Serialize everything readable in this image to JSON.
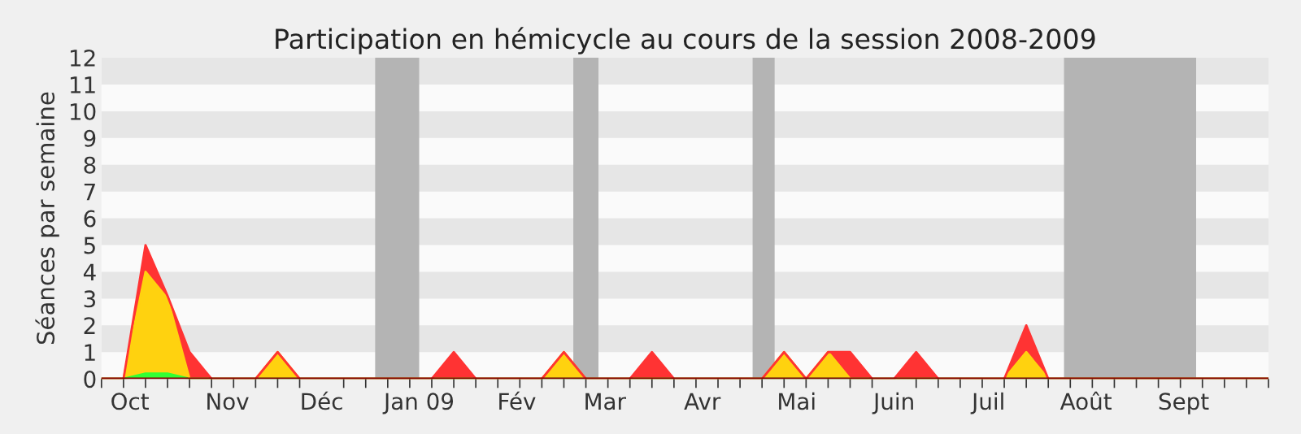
{
  "chart_data": {
    "type": "area",
    "stacked": true,
    "title": "Participation en hémicycle au cours de la session 2008-2009",
    "ylabel": "Séances par semaine",
    "x": [
      "2008-09-22",
      "2008-09-29",
      "2008-10-06",
      "2008-10-13",
      "2008-10-20",
      "2008-10-27",
      "2008-11-03",
      "2008-11-10",
      "2008-11-17",
      "2008-11-24",
      "2008-12-01",
      "2008-12-08",
      "2008-12-15",
      "2008-12-22",
      "2008-12-29",
      "2009-01-05",
      "2009-01-12",
      "2009-01-19",
      "2009-01-26",
      "2009-02-02",
      "2009-02-09",
      "2009-02-16",
      "2009-02-23",
      "2009-03-02",
      "2009-03-09",
      "2009-03-16",
      "2009-03-23",
      "2009-03-30",
      "2009-04-06",
      "2009-04-13",
      "2009-04-20",
      "2009-04-27",
      "2009-05-04",
      "2009-05-11",
      "2009-05-18",
      "2009-05-25",
      "2009-06-01",
      "2009-06-08",
      "2009-06-15",
      "2009-06-22",
      "2009-06-29",
      "2009-07-06",
      "2009-07-13",
      "2009-07-20",
      "2009-07-27",
      "2009-08-03",
      "2009-08-10",
      "2009-08-17",
      "2009-08-24",
      "2009-08-31",
      "2009-09-07",
      "2009-09-14",
      "2009-09-21",
      "2009-09-28"
    ],
    "series": [
      {
        "color": "#33ff33",
        "values": [
          0,
          0,
          0.2,
          0.2,
          0,
          0,
          0,
          0,
          0,
          0,
          0,
          0,
          0,
          0,
          0,
          0,
          0,
          0,
          0,
          0,
          0,
          0,
          0,
          0,
          0,
          0,
          0,
          0,
          0,
          0,
          0,
          0,
          0,
          0,
          0,
          0,
          0,
          0,
          0,
          0,
          0,
          0,
          0,
          0,
          0,
          0,
          0,
          0,
          0,
          0,
          0,
          0,
          0,
          0
        ]
      },
      {
        "color": "#ffd20f",
        "values": [
          0,
          0,
          3.8,
          2.8,
          0,
          0,
          0,
          0,
          1,
          0,
          0,
          0,
          0,
          0,
          0,
          0,
          0,
          0,
          0,
          0,
          0,
          1,
          0,
          0,
          0,
          0,
          0,
          0,
          0,
          0,
          0,
          1,
          0,
          1,
          0,
          0,
          0,
          0,
          0,
          0,
          0,
          0,
          1,
          0,
          0,
          0,
          0,
          0,
          0,
          0,
          0,
          0,
          0,
          0
        ]
      },
      {
        "color": "#ff3333",
        "values": [
          0,
          0,
          1,
          0.1,
          1,
          0,
          0,
          0,
          0,
          0,
          0,
          0,
          0,
          0,
          0,
          0,
          1,
          0,
          0,
          0,
          0,
          0,
          0,
          0,
          0,
          1,
          0,
          0,
          0,
          0,
          0,
          0,
          0,
          0,
          1,
          0,
          0,
          1,
          0,
          0,
          0,
          0,
          1,
          0,
          0,
          0,
          0,
          0,
          0,
          0,
          0,
          0,
          0,
          0
        ]
      }
    ],
    "xlim": [
      "2008-09-22",
      "2009-09-28"
    ],
    "xticks": [
      {
        "value": "2008-10-01",
        "label": "Oct"
      },
      {
        "value": "2008-11-01",
        "label": "Nov"
      },
      {
        "value": "2008-12-01",
        "label": "Déc"
      },
      {
        "value": "2009-01-01",
        "label": "Jan 09"
      },
      {
        "value": "2009-02-01",
        "label": "Fév"
      },
      {
        "value": "2009-03-01",
        "label": "Mar"
      },
      {
        "value": "2009-04-01",
        "label": "Avr"
      },
      {
        "value": "2009-05-01",
        "label": "Mai"
      },
      {
        "value": "2009-06-01",
        "label": "Juin"
      },
      {
        "value": "2009-07-01",
        "label": "Juil"
      },
      {
        "value": "2009-08-01",
        "label": "Août"
      },
      {
        "value": "2009-09-01",
        "label": "Sept"
      }
    ],
    "ylim": [
      0,
      12
    ],
    "yticks": [
      0,
      1,
      2,
      3,
      4,
      5,
      6,
      7,
      8,
      9,
      10,
      11,
      12
    ],
    "bands": [
      {
        "axis": "x",
        "from": "2008-12-18",
        "to": "2009-01-01",
        "color": "#b4b4b4"
      },
      {
        "axis": "x",
        "from": "2009-02-19",
        "to": "2009-02-27",
        "color": "#b4b4b4"
      },
      {
        "axis": "x",
        "from": "2009-04-17",
        "to": "2009-04-24",
        "color": "#b4b4b4"
      },
      {
        "axis": "x",
        "from": "2009-07-25",
        "to": "2009-09-05",
        "color": "#b4b4b4"
      }
    ]
  }
}
